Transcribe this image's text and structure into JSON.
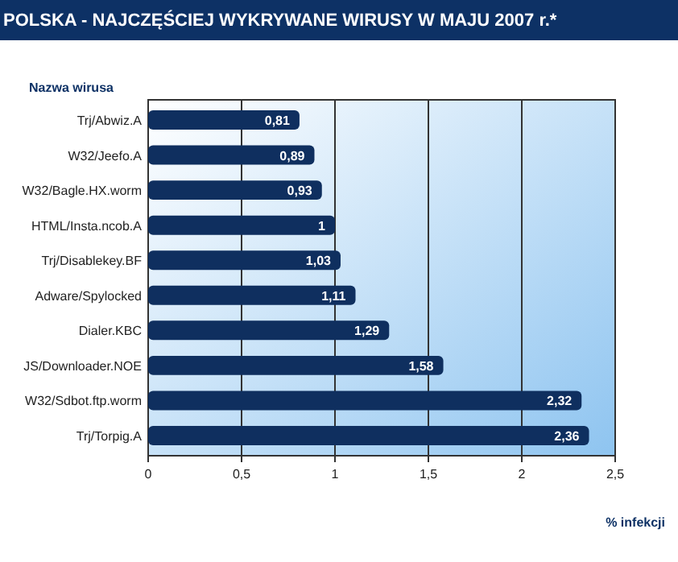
{
  "chart_data": {
    "type": "bar",
    "orientation": "horizontal",
    "title": "POLSKA - NAJCZĘŚCIEJ WYKRYWANE WIRUSY W MAJU 2007 r.*",
    "ylabel": "Nazwa wirusa",
    "xlabel": "% infekcji",
    "categories": [
      "Trj/Abwiz.A",
      "W32/Jeefo.A",
      "W32/Bagle.HX.worm",
      "HTML/Insta.ncob.A",
      "Trj/Disablekey.BF",
      "Adware/Spylocked",
      "Dialer.KBC",
      "JS/Downloader.NOE",
      "W32/Sdbot.ftp.worm",
      "Trj/Torpig.A"
    ],
    "values": [
      0.81,
      0.89,
      0.93,
      1,
      1.03,
      1.11,
      1.29,
      1.58,
      2.32,
      2.36
    ],
    "value_labels": [
      "0,81",
      "0,89",
      "0,93",
      "1",
      "1,03",
      "1,11",
      "1,29",
      "1,58",
      "2,32",
      "2,36"
    ],
    "color": "#0f2f5f",
    "xlim": [
      0,
      2.5
    ],
    "xticks": [
      0,
      {
        "value": 0.5,
        "label": "0,5"
      },
      1,
      {
        "value": 1.5,
        "label": "1,5"
      },
      2,
      {
        "value": 2.5,
        "label": "2,5"
      }
    ],
    "grid": "x"
  }
}
